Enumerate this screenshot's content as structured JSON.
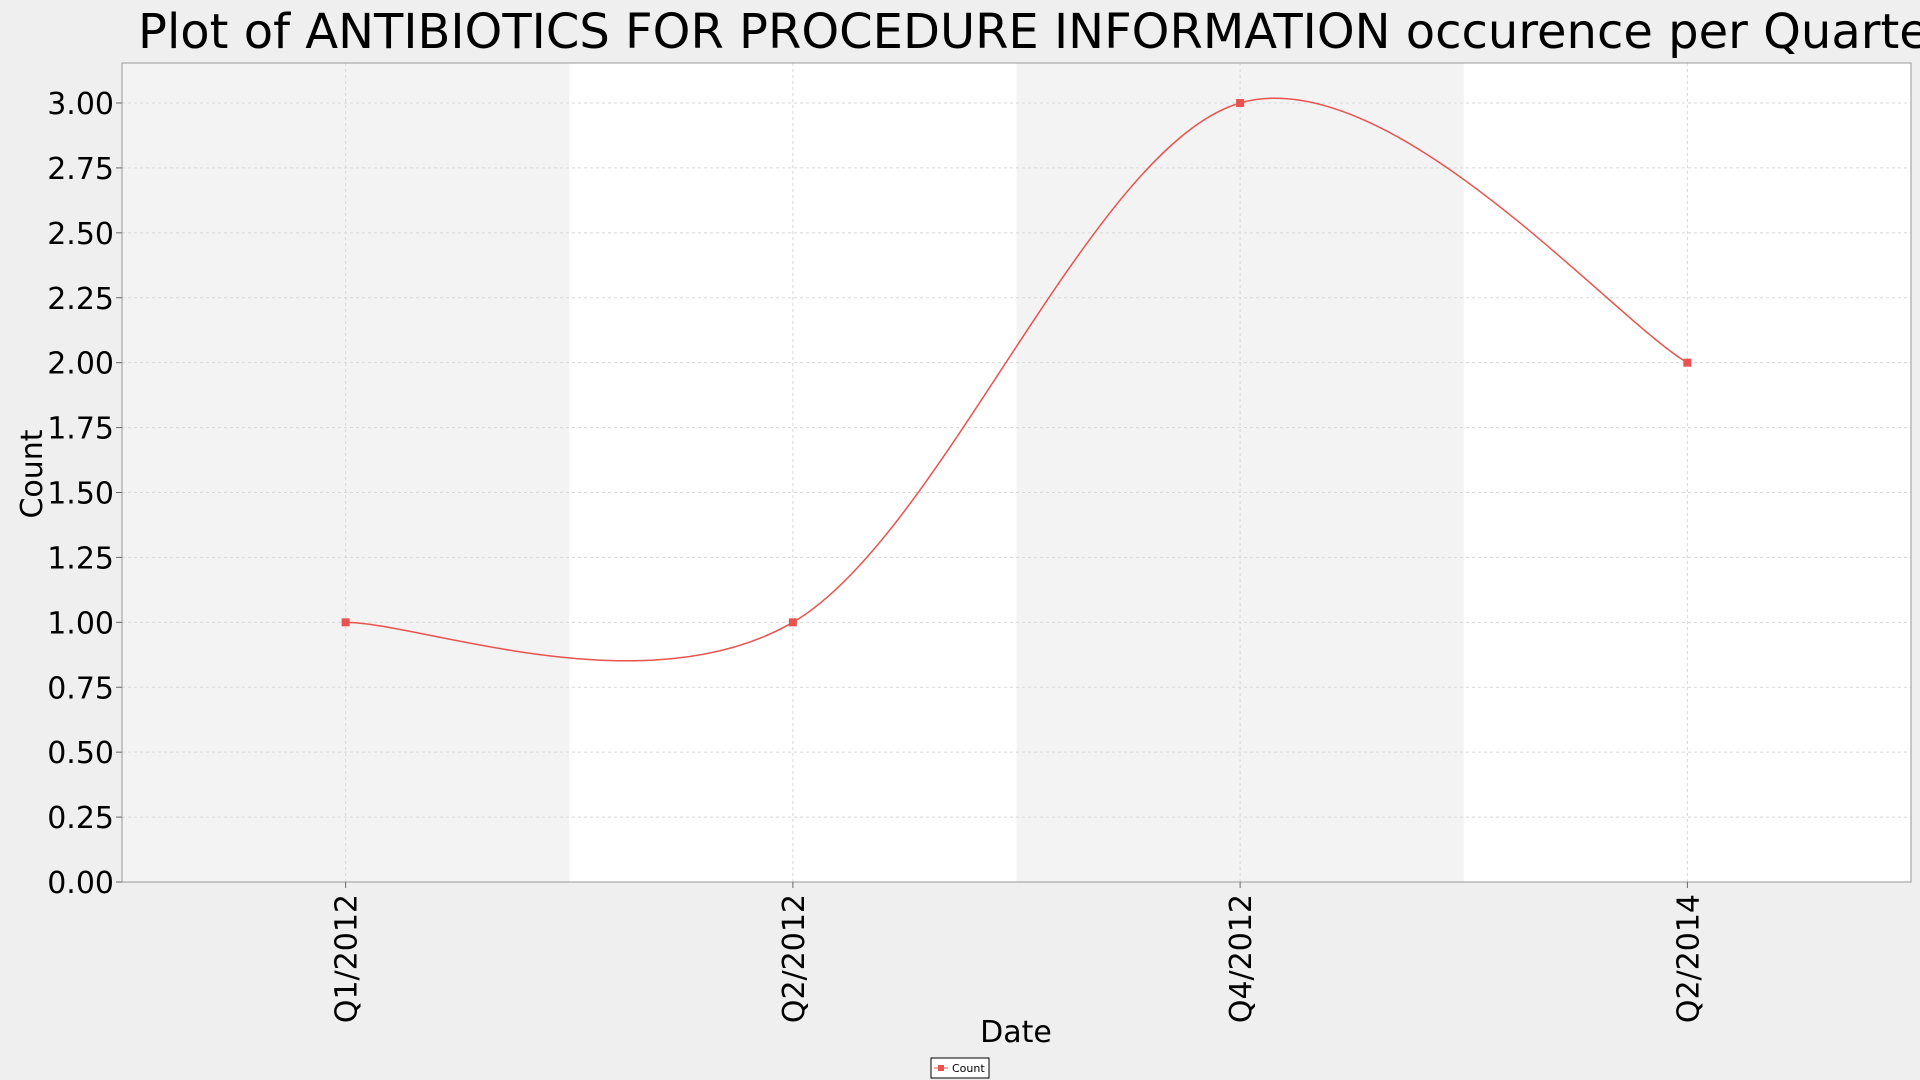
{
  "chart_data": {
    "type": "line",
    "title": "Plot of ANTIBIOTICS FOR PROCEDURE INFORMATION occurence per Quarter",
    "xlabel": "Date",
    "ylabel": "Count",
    "categories": [
      "Q1/2012",
      "Q2/2012",
      "Q4/2012",
      "Q2/2014"
    ],
    "series": [
      {
        "name": "Count",
        "values": [
          1,
          1,
          3,
          2
        ]
      }
    ],
    "ylim": [
      0,
      3.0
    ],
    "y_ticks": [
      "0.00",
      "0.25",
      "0.50",
      "0.75",
      "1.00",
      "1.25",
      "1.50",
      "1.75",
      "2.00",
      "2.25",
      "2.50",
      "2.75",
      "3.00"
    ],
    "smoothed": true,
    "grid": true,
    "legend_position": "bottom-center",
    "colors": {
      "series": "#e8534f",
      "band_shaded": "#f3f3f3",
      "band_plain": "#ffffff",
      "grid": "#d8d8d8",
      "background": "#efefef"
    }
  }
}
